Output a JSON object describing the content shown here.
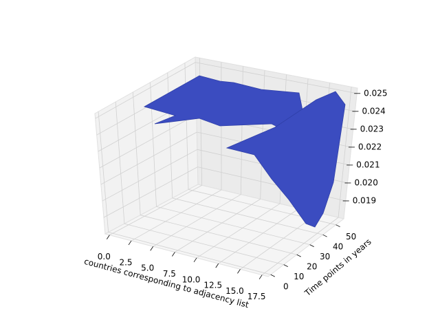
{
  "chart_data": {
    "type": "surface3d",
    "xlabel": "countries corresponding to adjacency list",
    "ylabel": "Time points in years",
    "color": "#3b4cc0",
    "grid": true,
    "xlim": [
      -0.5,
      18.2
    ],
    "ylim": [
      -2,
      56
    ],
    "zlim": [
      0.018,
      0.0253
    ],
    "xticks": [
      {
        "value": 0,
        "label": "0.0"
      },
      {
        "value": 2.5,
        "label": "2.5"
      },
      {
        "value": 5,
        "label": "5.0"
      },
      {
        "value": 7.5,
        "label": "7.5"
      },
      {
        "value": 10,
        "label": "10.0"
      },
      {
        "value": 12.5,
        "label": "12.5"
      },
      {
        "value": 15,
        "label": "15.0"
      },
      {
        "value": 17.5,
        "label": "17.5"
      }
    ],
    "yticks": [
      0,
      10,
      20,
      30,
      40,
      50
    ],
    "zticks": [
      0.019,
      {
        "value": 0.02,
        "label": "0.020"
      },
      0.021,
      0.022,
      0.023,
      0.024,
      0.025
    ]
  }
}
